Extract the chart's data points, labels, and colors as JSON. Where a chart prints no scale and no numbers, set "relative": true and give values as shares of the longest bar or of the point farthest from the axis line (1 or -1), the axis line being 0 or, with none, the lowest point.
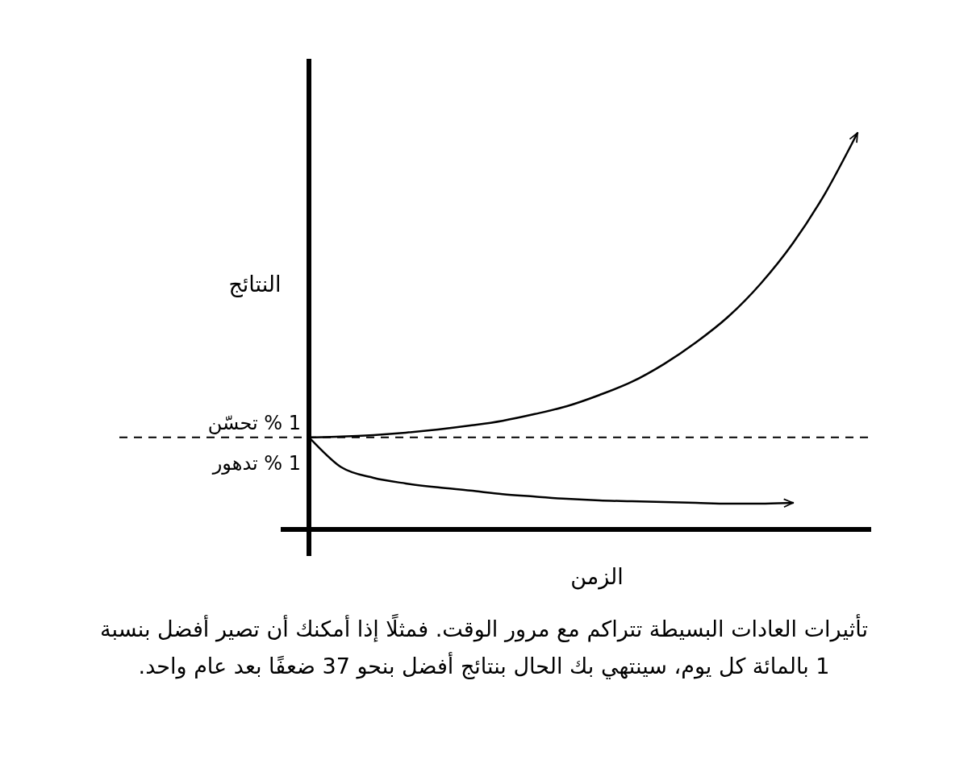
{
  "chart_data": {
    "type": "line",
    "relative": true,
    "xlabel": "الزمن",
    "ylabel": "النتائج",
    "categories": [
      null,
      null,
      null,
      null,
      null,
      null,
      null,
      null,
      null,
      null,
      null,
      null,
      null,
      null,
      null,
      null,
      null,
      null
    ],
    "series": [
      {
        "name": "1 % تحسّن",
        "color": "#000000",
        "values": [
          0.232,
          0.234,
          0.238,
          0.244,
          0.252,
          0.262,
          0.274,
          0.291,
          0.311,
          0.339,
          0.372,
          0.417,
          0.472,
          0.537,
          0.62,
          0.722,
          0.848,
          1
        ]
      },
      {
        "name": "1 % تدهور",
        "color": "#000000",
        "values": [
          0.232,
          0.157,
          0.13,
          0.116,
          0.106,
          0.098,
          0.089,
          0.083,
          0.077,
          0.073,
          0.071,
          0.069,
          0.067,
          0.065,
          0.065,
          0.067,
          null,
          null
        ]
      }
    ],
    "ref_lines": [
      {
        "axis": "y",
        "value": 0.232,
        "line_style": "dashed",
        "color": "#000000"
      }
    ],
    "legend": false,
    "annotations": [
      "تأثيرات العادات البسيطة تتراكم مع مرور الوقت. فمثلًا إذا أمكنك أن تصير أفضل بنسبة 1 بالمائة كل يوم، سينتهي بك الحال بنتائج أفضل بنحو 37 ضعفًا بعد عام واحد."
    ]
  }
}
